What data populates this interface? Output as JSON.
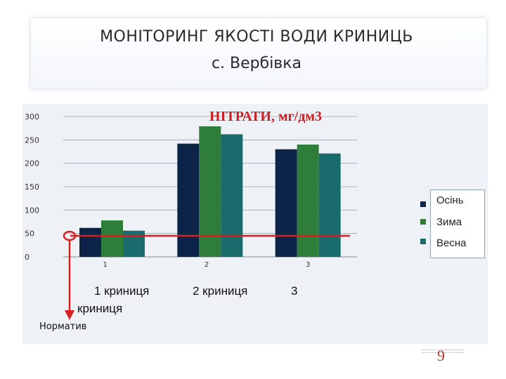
{
  "header": {
    "title_line1": "МОНІТОРИНГ ЯКОСТІ ВОДИ КРИНИЦЬ",
    "title_line2": "с. Вербівка"
  },
  "chart_data": {
    "type": "bar",
    "title": "НІТРАТИ, мг/дм3",
    "categories": [
      "1",
      "2",
      "3"
    ],
    "series": [
      {
        "name": "Осінь",
        "values": [
          62,
          242,
          230
        ]
      },
      {
        "name": "Зима",
        "values": [
          78,
          279,
          240
        ]
      },
      {
        "name": "Весна",
        "values": [
          56,
          262,
          221
        ]
      }
    ],
    "colors": [
      "#0b2447",
      "#2e7d3a",
      "#1a6b6b"
    ],
    "ylim": [
      0,
      300
    ],
    "yticks": [
      "0",
      "50",
      "100",
      "150",
      "200",
      "250",
      "300"
    ],
    "grid": true,
    "legend_position": "right",
    "norm_value": 45,
    "norm_color": "#d62020"
  },
  "annotations": {
    "well1": "1 криниця",
    "well1_wrap": "криниця",
    "well2": "2 криниця",
    "well3": "3",
    "norm_label": "Норматив"
  },
  "footer": {
    "page_number": "9"
  }
}
